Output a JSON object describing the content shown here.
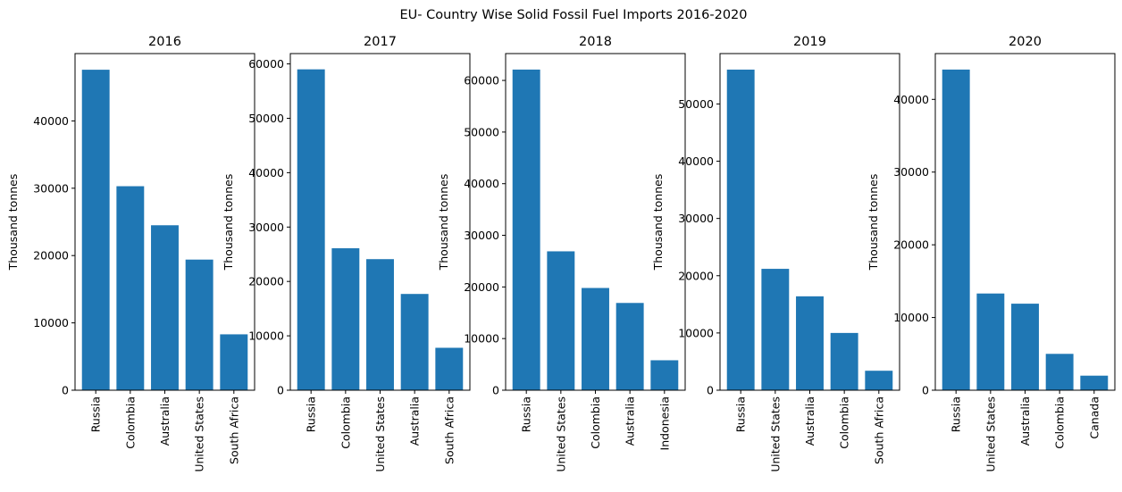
{
  "figure": {
    "title": "EU- Country Wise Solid Fossil Fuel Imports 2016-2020",
    "bar_color": "#1f77b4"
  },
  "chart_data": [
    {
      "type": "bar",
      "title": "2016",
      "xlabel": "",
      "ylabel": "Thousand tonnes",
      "categories": [
        "Russia",
        "Colombia",
        "Australia",
        "United States",
        "South Africa"
      ],
      "values": [
        47600,
        30300,
        24500,
        19400,
        8300
      ],
      "ylim": [
        0,
        50000
      ],
      "yticks": [
        0,
        10000,
        20000,
        30000,
        40000
      ],
      "ytick_labels": [
        "0",
        "10000",
        "20000",
        "30000",
        "40000"
      ],
      "grid": false
    },
    {
      "type": "bar",
      "title": "2017",
      "xlabel": "",
      "ylabel": "Thousand tonnes",
      "categories": [
        "Russia",
        "Colombia",
        "United States",
        "Australia",
        "South Africa"
      ],
      "values": [
        59000,
        26100,
        24100,
        17700,
        7800
      ],
      "ylim": [
        0,
        61900
      ],
      "yticks": [
        0,
        10000,
        20000,
        30000,
        40000,
        50000,
        60000
      ],
      "ytick_labels": [
        "0",
        "10000",
        "20000",
        "30000",
        "40000",
        "50000",
        "60000"
      ],
      "grid": false
    },
    {
      "type": "bar",
      "title": "2018",
      "xlabel": "",
      "ylabel": "Thousand tonnes",
      "categories": [
        "Russia",
        "United States",
        "Colombia",
        "Australia",
        "Indonesia"
      ],
      "values": [
        62100,
        26900,
        19800,
        16900,
        5800
      ],
      "ylim": [
        0,
        65200
      ],
      "yticks": [
        0,
        10000,
        20000,
        30000,
        40000,
        50000,
        60000
      ],
      "ytick_labels": [
        "0",
        "10000",
        "20000",
        "30000",
        "40000",
        "50000",
        "60000"
      ],
      "grid": false
    },
    {
      "type": "bar",
      "title": "2019",
      "xlabel": "",
      "ylabel": "Thousand tonnes",
      "categories": [
        "Russia",
        "United States",
        "Australia",
        "Colombia",
        "South Africa"
      ],
      "values": [
        56000,
        21200,
        16400,
        10000,
        3400
      ],
      "ylim": [
        0,
        58800
      ],
      "yticks": [
        0,
        10000,
        20000,
        30000,
        40000,
        50000
      ],
      "ytick_labels": [
        "0",
        "10000",
        "20000",
        "30000",
        "40000",
        "50000"
      ],
      "grid": false
    },
    {
      "type": "bar",
      "title": "2020",
      "xlabel": "",
      "ylabel": "Thousand tonnes",
      "categories": [
        "Russia",
        "United States",
        "Australia",
        "Colombia",
        "Canada"
      ],
      "values": [
        44100,
        13300,
        11900,
        5000,
        2000
      ],
      "ylim": [
        0,
        46300
      ],
      "yticks": [
        0,
        10000,
        20000,
        30000,
        40000
      ],
      "ytick_labels": [
        "0",
        "10000",
        "20000",
        "30000",
        "40000"
      ],
      "grid": false
    }
  ]
}
